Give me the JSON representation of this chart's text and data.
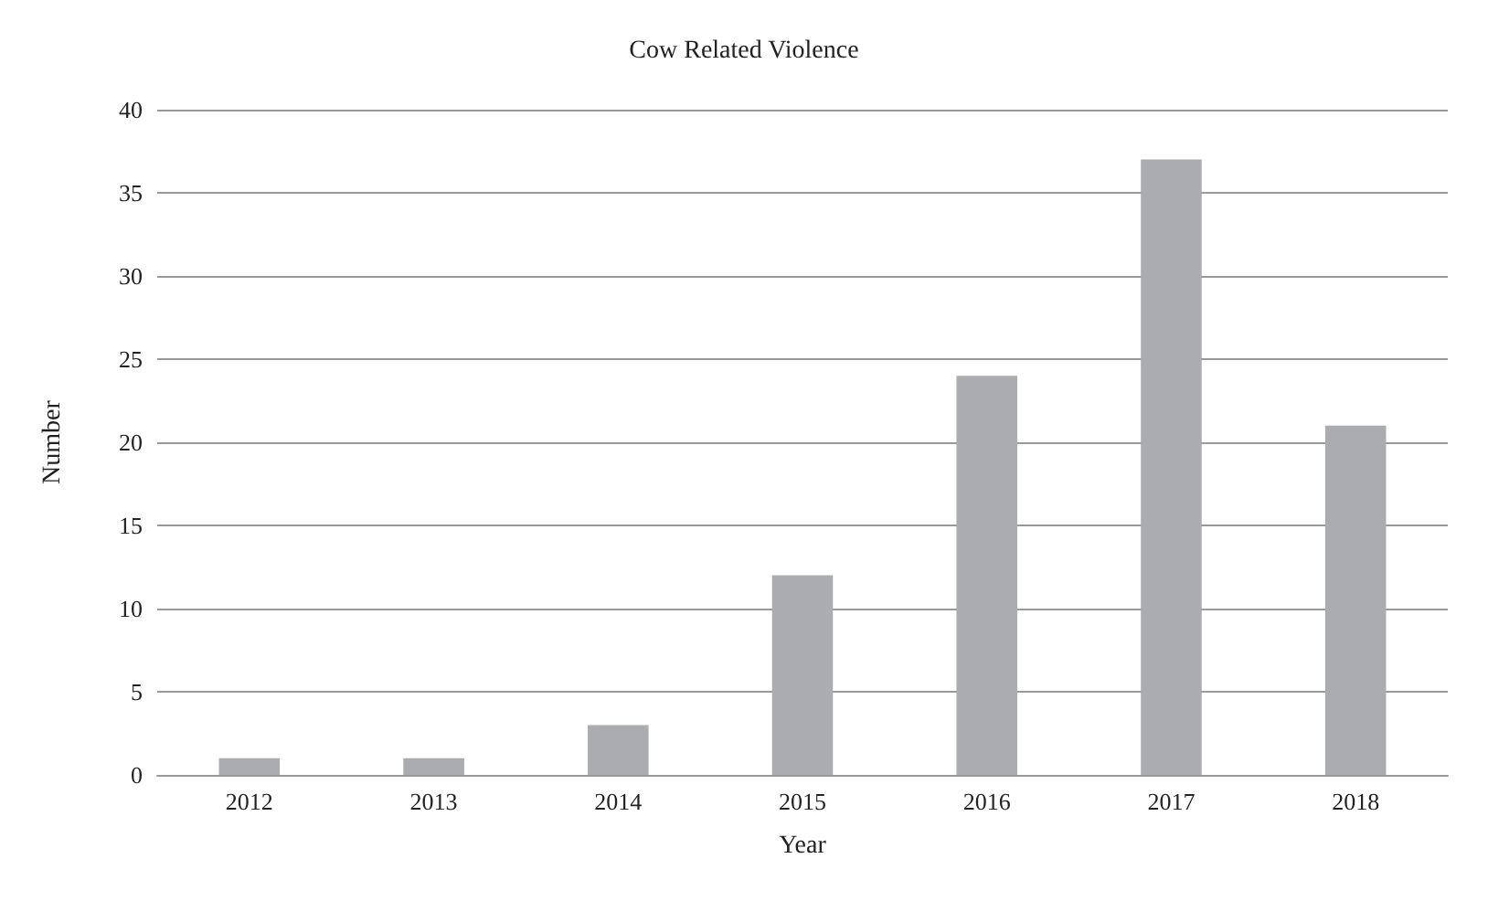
{
  "chart_data": {
    "type": "bar",
    "title": "Cow Related Violence",
    "xlabel": "Year",
    "ylabel": "Number",
    "categories": [
      "2012",
      "2013",
      "2014",
      "2015",
      "2016",
      "2017",
      "2018"
    ],
    "values": [
      1,
      1,
      3,
      12,
      24,
      37,
      21
    ],
    "color": "#abacb0",
    "ylim": [
      0,
      40
    ],
    "yticks": [
      0,
      5,
      10,
      15,
      20,
      25,
      30,
      35,
      40
    ],
    "grid": "y"
  }
}
